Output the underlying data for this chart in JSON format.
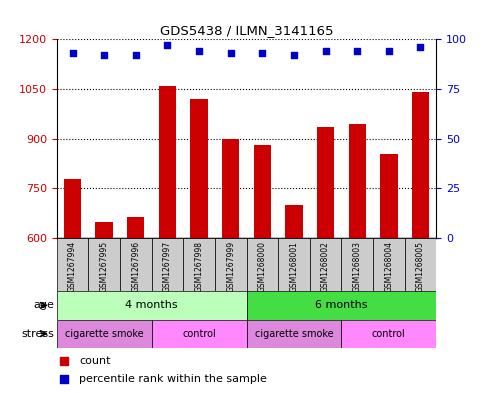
{
  "title": "GDS5438 / ILMN_3141165",
  "samples": [
    "GSM1267994",
    "GSM1267995",
    "GSM1267996",
    "GSM1267997",
    "GSM1267998",
    "GSM1267999",
    "GSM1268000",
    "GSM1268001",
    "GSM1268002",
    "GSM1268003",
    "GSM1268004",
    "GSM1268005"
  ],
  "counts": [
    780,
    650,
    665,
    1060,
    1020,
    900,
    880,
    700,
    935,
    945,
    855,
    1040
  ],
  "percentile_ranks": [
    93,
    92,
    92,
    97,
    94,
    93,
    93,
    92,
    94,
    94,
    94,
    96
  ],
  "ylim_left": [
    600,
    1200
  ],
  "ylim_right": [
    0,
    100
  ],
  "yticks_left": [
    600,
    750,
    900,
    1050,
    1200
  ],
  "yticks_right": [
    0,
    25,
    50,
    75,
    100
  ],
  "bar_color": "#cc0000",
  "dot_color": "#0000cc",
  "bar_width": 0.55,
  "age_groups": [
    {
      "label": "4 months",
      "start": 0,
      "end": 6,
      "color": "#bbffbb"
    },
    {
      "label": "6 months",
      "start": 6,
      "end": 12,
      "color": "#44dd44"
    }
  ],
  "stress_groups": [
    {
      "label": "cigarette smoke",
      "start": 0,
      "end": 3,
      "color": "#dd88dd"
    },
    {
      "label": "control",
      "start": 3,
      "end": 6,
      "color": "#ff88ff"
    },
    {
      "label": "cigarette smoke",
      "start": 6,
      "end": 9,
      "color": "#dd88dd"
    },
    {
      "label": "control",
      "start": 9,
      "end": 12,
      "color": "#ff88ff"
    }
  ],
  "sample_box_color": "#cccccc",
  "background_color": "#ffffff",
  "left_axis_color": "#cc0000",
  "right_axis_color": "#0000cc"
}
